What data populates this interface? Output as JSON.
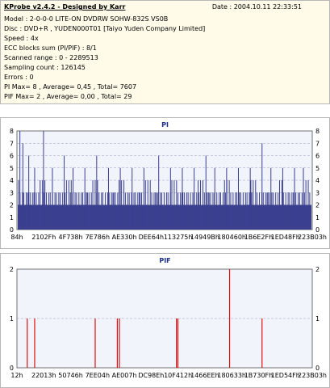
{
  "header": {
    "title": "KProbe v2.4.2 - Designed by Karr",
    "date": "Date : 2004.10.11 22:33:51",
    "lines": [
      "Model : 2-0-0-0 LITE-ON DVDRW SOHW-832S  VS0B",
      "Disc : DVD+R , YUDEN000T01 [Taiyo Yuden Company Limited]",
      "Speed : 4x",
      "ECC blocks sum (PI/PIF) : 8/1",
      "Scanned range : 0 - 2289513",
      "Sampling count : 126145",
      "Errors : 0",
      "PI Max= 8 , Average= 0,45 , Total= 7607",
      "PIF Max= 2 , Average= 0,00 , Total= 29"
    ]
  },
  "colors": {
    "pi_fill": "#3a3f8e",
    "pif_line": "#e01010",
    "plot_bg": "#f2f4fc",
    "grid": "#9aa0b8"
  },
  "chart_data": [
    {
      "type": "area",
      "title": "PI",
      "ylim": [
        0,
        8
      ],
      "yticks": [
        "0",
        "1",
        "2",
        "3",
        "4",
        "5",
        "6",
        "7",
        "8"
      ],
      "xticks": [
        "84h",
        "2102Fh",
        "4F738h",
        "7E786h",
        "AE330h",
        "DEE64h",
        "113275h",
        "14949Bh",
        "180460h",
        "1B6E2Fh",
        "1ED48Fh",
        "223B03h"
      ],
      "baseline_level": 2,
      "spikes": [
        {
          "x": 0.01,
          "y": 8
        },
        {
          "x": 0.02,
          "y": 7
        },
        {
          "x": 0.04,
          "y": 6
        },
        {
          "x": 0.06,
          "y": 5
        },
        {
          "x": 0.09,
          "y": 8
        },
        {
          "x": 0.12,
          "y": 5
        },
        {
          "x": 0.16,
          "y": 6
        },
        {
          "x": 0.19,
          "y": 5
        },
        {
          "x": 0.23,
          "y": 5
        },
        {
          "x": 0.27,
          "y": 6
        },
        {
          "x": 0.31,
          "y": 5
        },
        {
          "x": 0.35,
          "y": 5
        },
        {
          "x": 0.39,
          "y": 5
        },
        {
          "x": 0.43,
          "y": 5
        },
        {
          "x": 0.48,
          "y": 6
        },
        {
          "x": 0.52,
          "y": 5
        },
        {
          "x": 0.56,
          "y": 5
        },
        {
          "x": 0.6,
          "y": 5
        },
        {
          "x": 0.64,
          "y": 6
        },
        {
          "x": 0.67,
          "y": 5
        },
        {
          "x": 0.71,
          "y": 5
        },
        {
          "x": 0.75,
          "y": 5
        },
        {
          "x": 0.79,
          "y": 5
        },
        {
          "x": 0.83,
          "y": 7
        },
        {
          "x": 0.86,
          "y": 5
        },
        {
          "x": 0.9,
          "y": 5
        },
        {
          "x": 0.94,
          "y": 5
        },
        {
          "x": 0.97,
          "y": 5
        }
      ]
    },
    {
      "type": "bar",
      "title": "PIF",
      "ylim": [
        0,
        2
      ],
      "yticks": [
        "0",
        "1",
        "2"
      ],
      "xticks": [
        "12h",
        "22013h",
        "50746h",
        "7EE04h",
        "AE007h",
        "DC98Eh",
        "10F412h",
        "1466EEh",
        "180633h",
        "1B730Fh",
        "1ED54Fh",
        "223B03h"
      ],
      "points": [
        {
          "x": 0.035,
          "y": 1
        },
        {
          "x": 0.06,
          "y": 1
        },
        {
          "x": 0.265,
          "y": 1
        },
        {
          "x": 0.34,
          "y": 1
        },
        {
          "x": 0.347,
          "y": 1
        },
        {
          "x": 0.54,
          "y": 1
        },
        {
          "x": 0.545,
          "y": 1
        },
        {
          "x": 0.72,
          "y": 2
        },
        {
          "x": 0.83,
          "y": 1
        }
      ]
    }
  ]
}
